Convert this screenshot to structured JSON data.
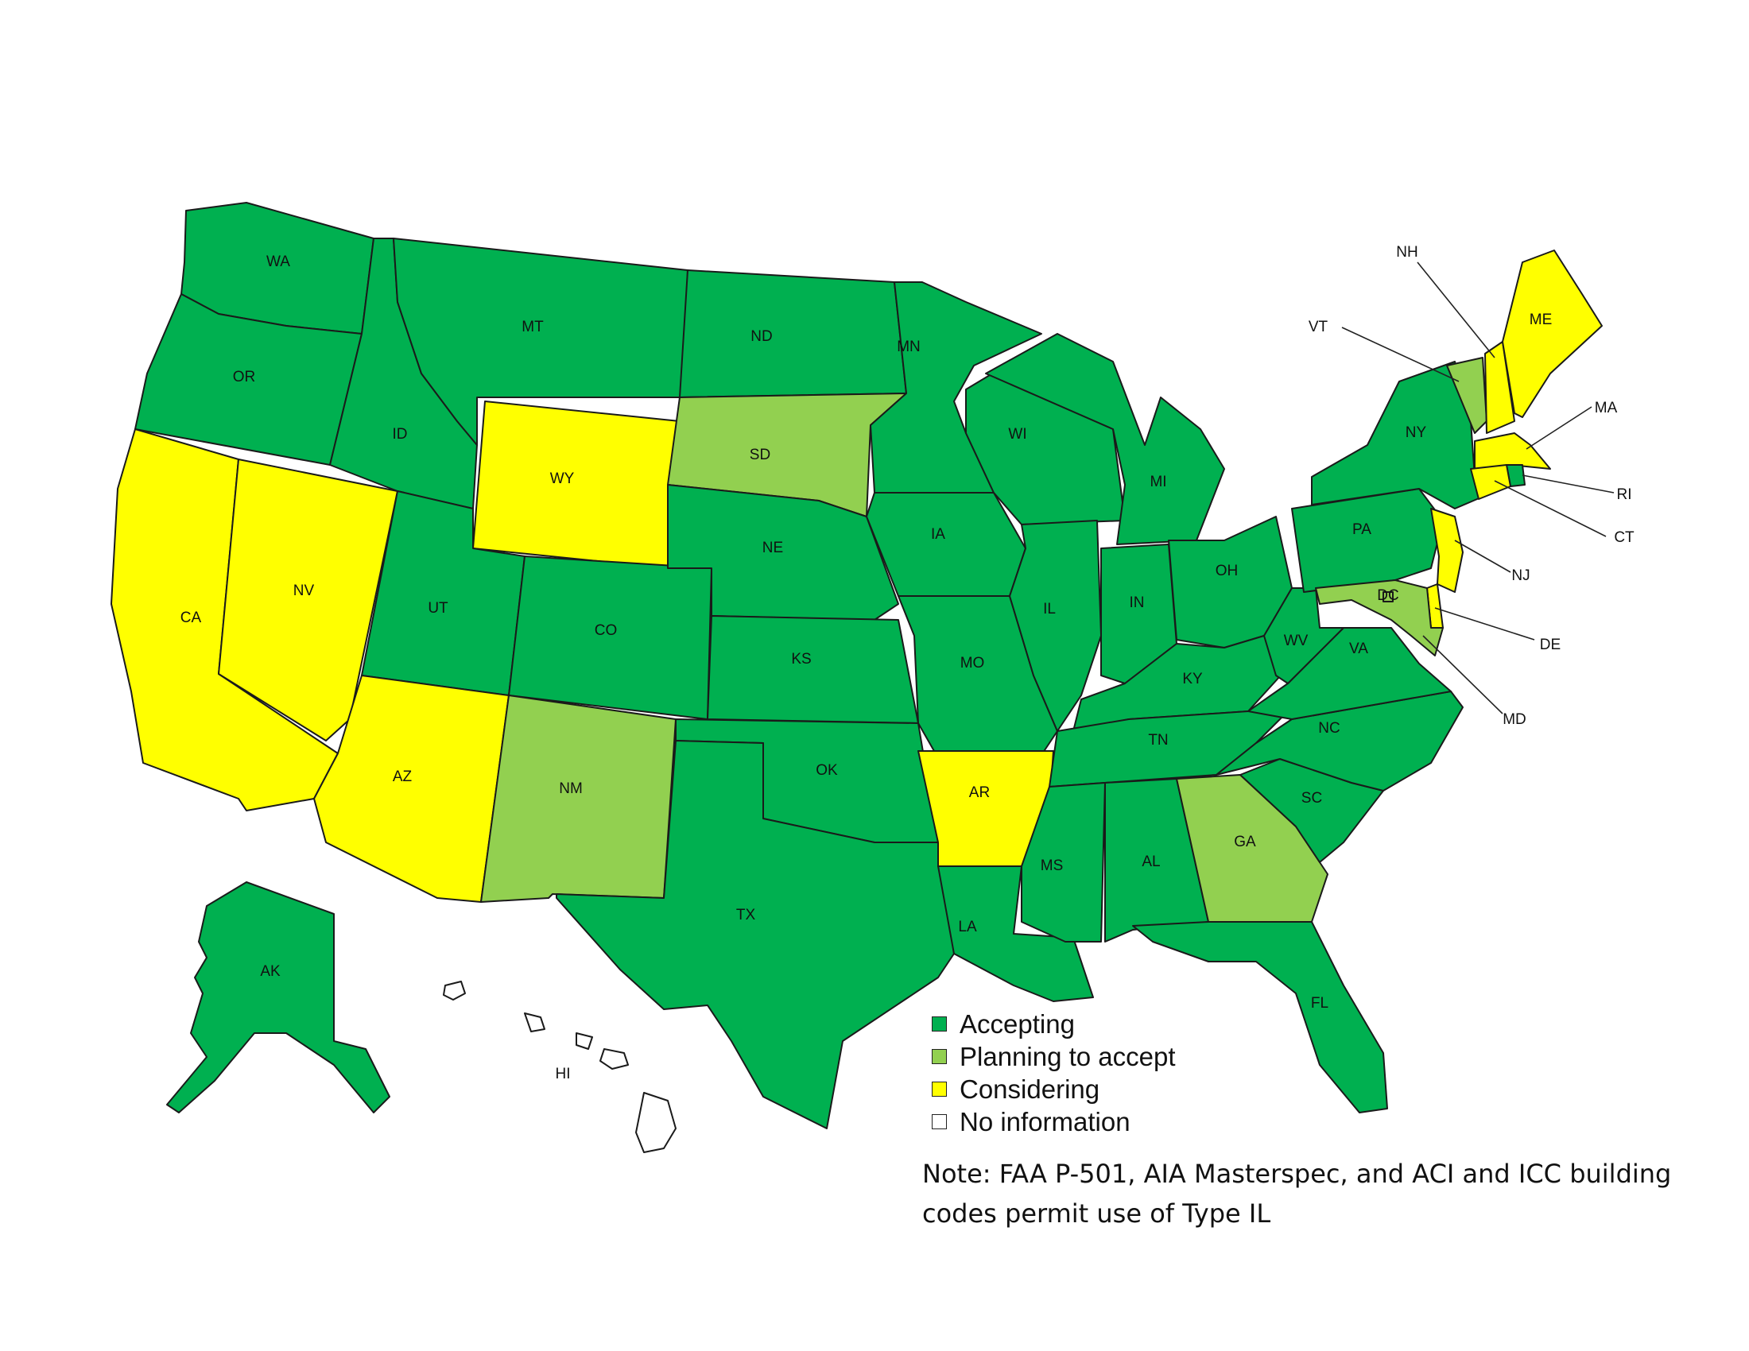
{
  "colors": {
    "accepting": "#00b050",
    "planning": "#92d050",
    "considering": "#ffff00",
    "none": "#ffffff"
  },
  "states": [
    {
      "abbr": "WA",
      "status": "accepting"
    },
    {
      "abbr": "OR",
      "status": "accepting"
    },
    {
      "abbr": "CA",
      "status": "considering"
    },
    {
      "abbr": "NV",
      "status": "considering"
    },
    {
      "abbr": "ID",
      "status": "accepting"
    },
    {
      "abbr": "MT",
      "status": "accepting"
    },
    {
      "abbr": "WY",
      "status": "considering"
    },
    {
      "abbr": "UT",
      "status": "accepting"
    },
    {
      "abbr": "AZ",
      "status": "considering"
    },
    {
      "abbr": "CO",
      "status": "accepting"
    },
    {
      "abbr": "NM",
      "status": "planning"
    },
    {
      "abbr": "ND",
      "status": "accepting"
    },
    {
      "abbr": "SD",
      "status": "planning"
    },
    {
      "abbr": "NE",
      "status": "accepting"
    },
    {
      "abbr": "KS",
      "status": "accepting"
    },
    {
      "abbr": "OK",
      "status": "accepting"
    },
    {
      "abbr": "TX",
      "status": "accepting"
    },
    {
      "abbr": "MN",
      "status": "accepting"
    },
    {
      "abbr": "IA",
      "status": "accepting"
    },
    {
      "abbr": "MO",
      "status": "accepting"
    },
    {
      "abbr": "AR",
      "status": "considering"
    },
    {
      "abbr": "LA",
      "status": "accepting"
    },
    {
      "abbr": "WI",
      "status": "accepting"
    },
    {
      "abbr": "IL",
      "status": "accepting"
    },
    {
      "abbr": "MI",
      "status": "accepting"
    },
    {
      "abbr": "IN",
      "status": "accepting"
    },
    {
      "abbr": "OH",
      "status": "accepting"
    },
    {
      "abbr": "KY",
      "status": "accepting"
    },
    {
      "abbr": "TN",
      "status": "accepting"
    },
    {
      "abbr": "MS",
      "status": "accepting"
    },
    {
      "abbr": "AL",
      "status": "accepting"
    },
    {
      "abbr": "GA",
      "status": "planning"
    },
    {
      "abbr": "FL",
      "status": "accepting"
    },
    {
      "abbr": "SC",
      "status": "accepting"
    },
    {
      "abbr": "NC",
      "status": "accepting"
    },
    {
      "abbr": "VA",
      "status": "accepting"
    },
    {
      "abbr": "WV",
      "status": "accepting"
    },
    {
      "abbr": "PA",
      "status": "accepting"
    },
    {
      "abbr": "NY",
      "status": "accepting"
    },
    {
      "abbr": "VT",
      "status": "planning"
    },
    {
      "abbr": "NH",
      "status": "considering"
    },
    {
      "abbr": "ME",
      "status": "considering"
    },
    {
      "abbr": "MA",
      "status": "considering"
    },
    {
      "abbr": "RI",
      "status": "accepting"
    },
    {
      "abbr": "CT",
      "status": "considering"
    },
    {
      "abbr": "NJ",
      "status": "considering"
    },
    {
      "abbr": "DE",
      "status": "considering"
    },
    {
      "abbr": "MD",
      "status": "planning"
    },
    {
      "abbr": "DC",
      "status": "planning"
    },
    {
      "abbr": "AK",
      "status": "accepting"
    },
    {
      "abbr": "HI",
      "status": "none"
    }
  ],
  "legend": [
    {
      "label": "Accepting",
      "status": "accepting"
    },
    {
      "label": "Planning to accept",
      "status": "planning"
    },
    {
      "label": "Considering",
      "status": "considering"
    },
    {
      "label": "No information",
      "status": "none"
    }
  ],
  "note": {
    "line1": "Note:  FAA P-501, AIA Masterspec, and ACI and ICC building",
    "line2": "codes permit use of Type IL"
  }
}
